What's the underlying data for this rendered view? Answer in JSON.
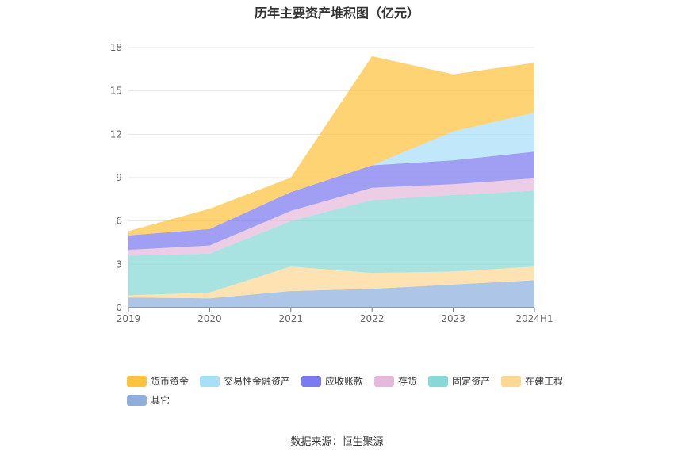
{
  "chart_data": {
    "type": "area",
    "stacked": true,
    "title": "历年主要资产堆积图（亿元）",
    "categories": [
      "2019",
      "2020",
      "2021",
      "2022",
      "2023",
      "2024H1"
    ],
    "yticks": [
      "0",
      "3",
      "6",
      "9",
      "12",
      "15",
      "18"
    ],
    "ylim": [
      0,
      18
    ],
    "grid": true,
    "legend_position": "bottom",
    "series": [
      {
        "name": "其它",
        "color": "#8eaedc",
        "values": [
          0.7,
          0.65,
          1.15,
          1.3,
          1.6,
          1.9
        ]
      },
      {
        "name": "在建工程",
        "color": "#fdd794",
        "values": [
          0.15,
          0.4,
          1.7,
          1.1,
          0.9,
          0.95
        ]
      },
      {
        "name": "固定资产",
        "color": "#88d8d6",
        "values": [
          2.75,
          2.7,
          3.15,
          5.05,
          5.3,
          5.25
        ]
      },
      {
        "name": "存货",
        "color": "#e6b9dc",
        "values": [
          0.4,
          0.55,
          0.7,
          0.85,
          0.75,
          0.85
        ]
      },
      {
        "name": "应收账款",
        "color": "#7b7af0",
        "values": [
          1.0,
          1.15,
          1.3,
          1.55,
          1.65,
          1.85
        ]
      },
      {
        "name": "交易性金融资产",
        "color": "#a7dff8",
        "values": [
          0,
          0,
          0,
          0,
          2.0,
          2.7
        ]
      },
      {
        "name": "货币资金",
        "color": "#fdc23e",
        "values": [
          0.3,
          1.4,
          1.0,
          7.55,
          3.95,
          3.45
        ]
      }
    ]
  },
  "source_note": "数据来源：恒生聚源"
}
